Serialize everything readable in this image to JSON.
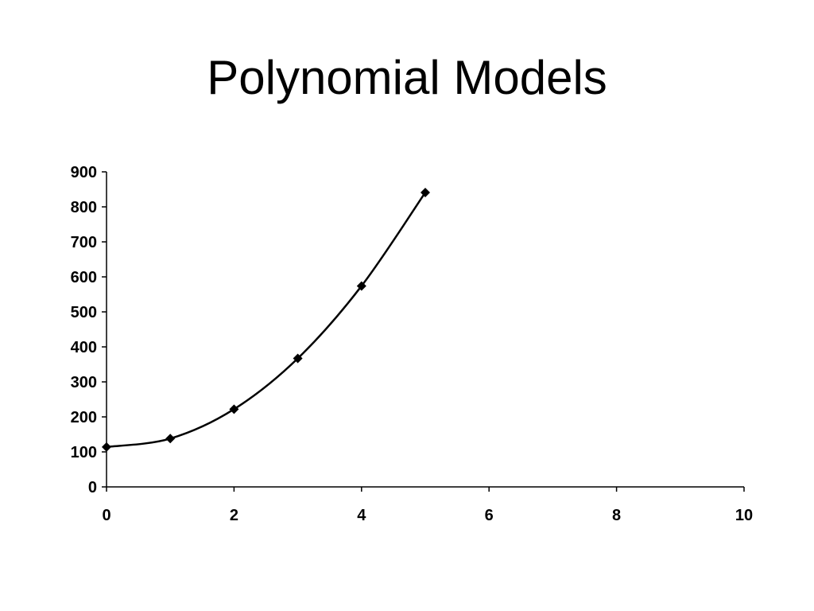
{
  "slide": {
    "title": "Polynomial Models"
  },
  "chart_data": {
    "type": "scatter",
    "title": "",
    "xlabel": "",
    "ylabel": "",
    "xlim": [
      0,
      10
    ],
    "ylim": [
      0,
      900
    ],
    "x_ticks": [
      0,
      2,
      4,
      6,
      8,
      10
    ],
    "y_ticks": [
      0,
      100,
      200,
      300,
      400,
      500,
      600,
      700,
      800,
      900
    ],
    "grid": false,
    "legend": "none",
    "smooth_line": true,
    "marker": "diamond",
    "color": "#000000",
    "series": [
      {
        "x": [
          0,
          1,
          2,
          3,
          4,
          5
        ],
        "y": [
          114,
          138,
          222,
          367,
          574,
          841
        ]
      }
    ]
  }
}
